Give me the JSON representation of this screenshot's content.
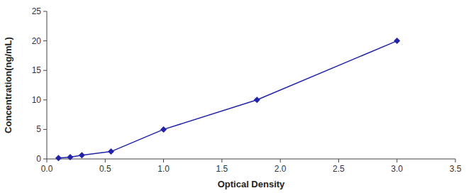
{
  "chart_data": {
    "type": "line",
    "x": [
      0.1,
      0.2,
      0.3,
      0.55,
      1.0,
      1.8,
      3.0
    ],
    "values": [
      0.156,
      0.312,
      0.625,
      1.25,
      5.0,
      10.0,
      20.0
    ],
    "color": "#2222aa",
    "marker": "diamond",
    "xlabel": "Optical Density",
    "ylabel": "Concentration(ng/mL)",
    "xlim": [
      0,
      3.5
    ],
    "ylim": [
      0,
      25
    ],
    "xticks": [
      {
        "value": 0.0,
        "label": "0.0"
      },
      0.5,
      {
        "value": 1.0,
        "label": "1.0"
      },
      1.5,
      {
        "value": 2.0,
        "label": "2.0"
      },
      2.5,
      {
        "value": 3.0,
        "label": "3.0"
      },
      3.5
    ],
    "yticks": [
      0,
      5,
      10,
      15,
      20,
      25
    ],
    "grid": false
  }
}
